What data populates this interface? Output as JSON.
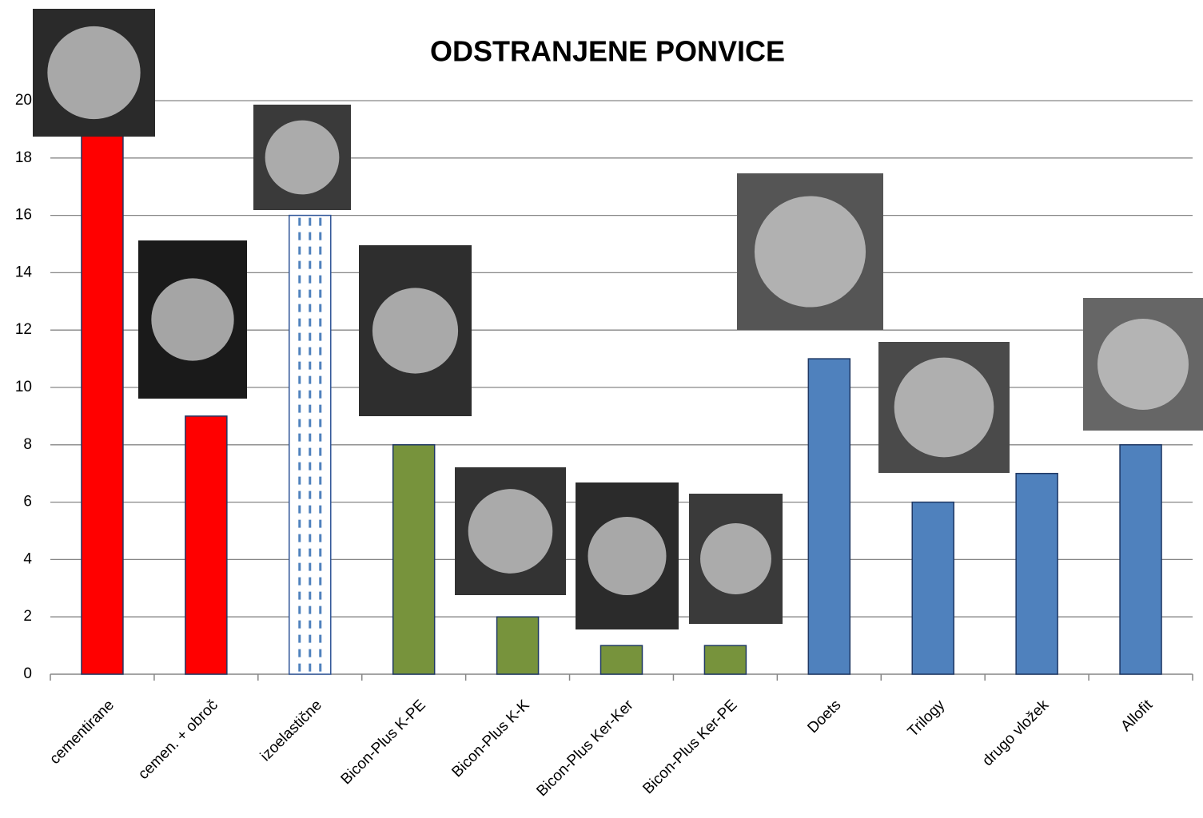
{
  "chart_data": {
    "type": "bar",
    "title": "ODSTRANJENE PONVICE",
    "categories": [
      "cementirane",
      "cemen. + obroč",
      "izoelastične",
      "Bicon-Plus K-PE",
      "Bicon-Plus K-K",
      "Bicon-Plus Ker-Ker",
      "Bicon-Plus Ker-PE",
      "Doets",
      "Trilogy",
      "drugo vložek",
      "Allofit"
    ],
    "values": [
      19,
      9,
      16,
      8,
      2,
      1,
      1,
      11,
      6,
      7,
      8
    ],
    "colors": [
      "#ff0000",
      "#ff0000",
      "#ffffff",
      "#77933c",
      "#77933c",
      "#77933c",
      "#77933c",
      "#4f81bd",
      "#4f81bd",
      "#4f81bd",
      "#4f81bd"
    ],
    "bar_styles": [
      "solid",
      "solid",
      "dashed",
      "solid",
      "solid",
      "solid",
      "solid",
      "solid",
      "solid",
      "solid",
      "solid"
    ],
    "ylim": [
      0,
      20
    ],
    "yticks": [
      0,
      2,
      4,
      6,
      8,
      10,
      12,
      14,
      16,
      18,
      20
    ],
    "grid": true
  }
}
